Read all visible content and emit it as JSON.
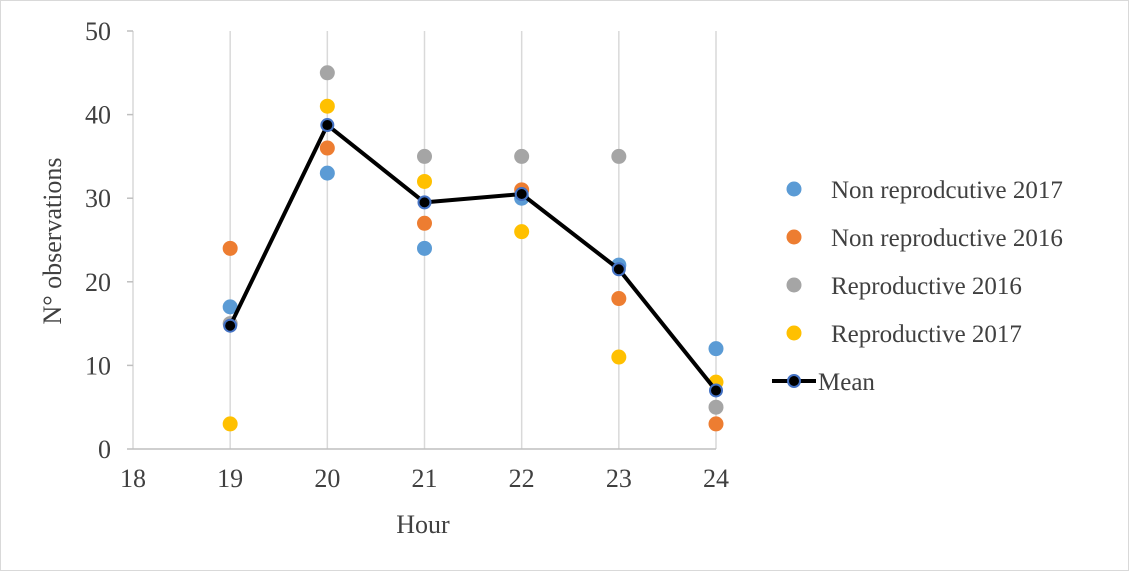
{
  "chart_data": {
    "type": "scatter",
    "title": "",
    "xlabel": "Hour",
    "ylabel": "N° observations",
    "xlim": [
      18,
      24
    ],
    "ylim": [
      0,
      50
    ],
    "x_ticks": [
      "18",
      "19",
      "20",
      "21",
      "22",
      "23",
      "24"
    ],
    "y_ticks": [
      "0",
      "10",
      "20",
      "30",
      "40",
      "50"
    ],
    "grid": "vertical",
    "legend_position": "right",
    "x": [
      19,
      20,
      21,
      22,
      23,
      24
    ],
    "series": [
      {
        "name": "Non reprodcutive 2017",
        "kind": "scatter",
        "color": "#5b9bd5",
        "values": [
          17,
          33,
          24,
          30,
          22,
          12
        ]
      },
      {
        "name": "Non reproductive 2016",
        "kind": "scatter",
        "color": "#ed7d31",
        "values": [
          24,
          36,
          27,
          31,
          18,
          3
        ]
      },
      {
        "name": "Reproductive 2016",
        "kind": "scatter",
        "color": "#a5a5a5",
        "values": [
          15,
          45,
          35,
          35,
          35,
          5
        ]
      },
      {
        "name": "Reproductive 2017",
        "kind": "scatter",
        "color": "#ffc000",
        "values": [
          3,
          41,
          32,
          26,
          11,
          8
        ]
      },
      {
        "name": "Mean",
        "kind": "line",
        "color": "#000000",
        "marker_color": "#4472c4",
        "values": [
          14.75,
          38.75,
          29.5,
          30.5,
          21.5,
          7
        ]
      }
    ]
  }
}
